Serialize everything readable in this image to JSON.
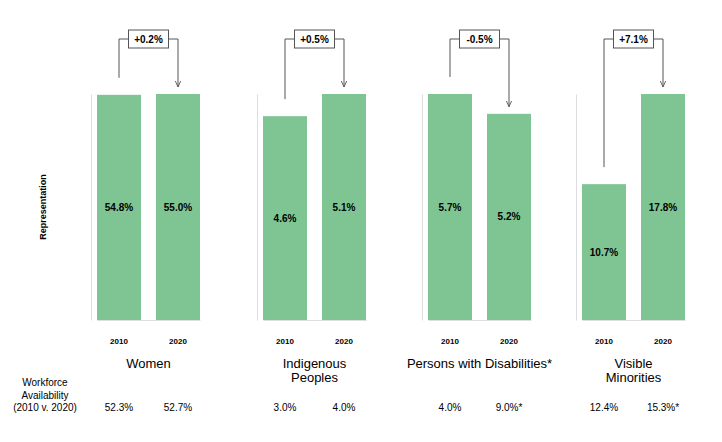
{
  "chart_data": [
    {
      "type": "bar",
      "title": [
        "Women"
      ],
      "categories": [
        "2010",
        "2020"
      ],
      "values": [
        54.8,
        55.0
      ],
      "value_labels": [
        "54.8%",
        "55.0%"
      ],
      "ylim": [
        0,
        55.0
      ],
      "tick_labels": "x",
      "data_labels": true,
      "color": "#7fc593",
      "annotation": "+0.2%",
      "availability": [
        "52.3%",
        "52.7%"
      ]
    },
    {
      "type": "bar",
      "title": [
        "Indigenous",
        "Peoples"
      ],
      "categories": [
        "2010",
        "2020"
      ],
      "values": [
        4.6,
        5.1
      ],
      "value_labels": [
        "4.6%",
        "5.1%"
      ],
      "ylim": [
        0,
        5.1
      ],
      "tick_labels": "x",
      "data_labels": true,
      "color": "#7fc593",
      "annotation": "+0.5%",
      "availability": [
        "3.0%",
        "4.0%"
      ]
    },
    {
      "type": "bar",
      "title": [
        "Persons with Disabilities*"
      ],
      "categories": [
        "2010",
        "2020"
      ],
      "values": [
        5.7,
        5.2
      ],
      "value_labels": [
        "5.7%",
        "5.2%"
      ],
      "ylim": [
        0,
        5.7
      ],
      "tick_labels": "x",
      "data_labels": true,
      "color": "#7fc593",
      "annotation": "-0.5%",
      "availability": [
        "4.0%",
        "9.0%*"
      ]
    },
    {
      "type": "bar",
      "title": [
        "Visible",
        "Minorities"
      ],
      "categories": [
        "2010",
        "2020"
      ],
      "values": [
        10.7,
        17.8
      ],
      "value_labels": [
        "10.7%",
        "17.8%"
      ],
      "ylim": [
        0,
        17.8
      ],
      "tick_labels": "x",
      "data_labels": true,
      "color": "#7fc593",
      "annotation": "+7.1%",
      "availability": [
        "12.4%",
        "15.3%*"
      ]
    }
  ],
  "axis_label": "Representation",
  "availability_label": [
    "Workforce",
    "Availability",
    "(2010 v. 2020)"
  ]
}
